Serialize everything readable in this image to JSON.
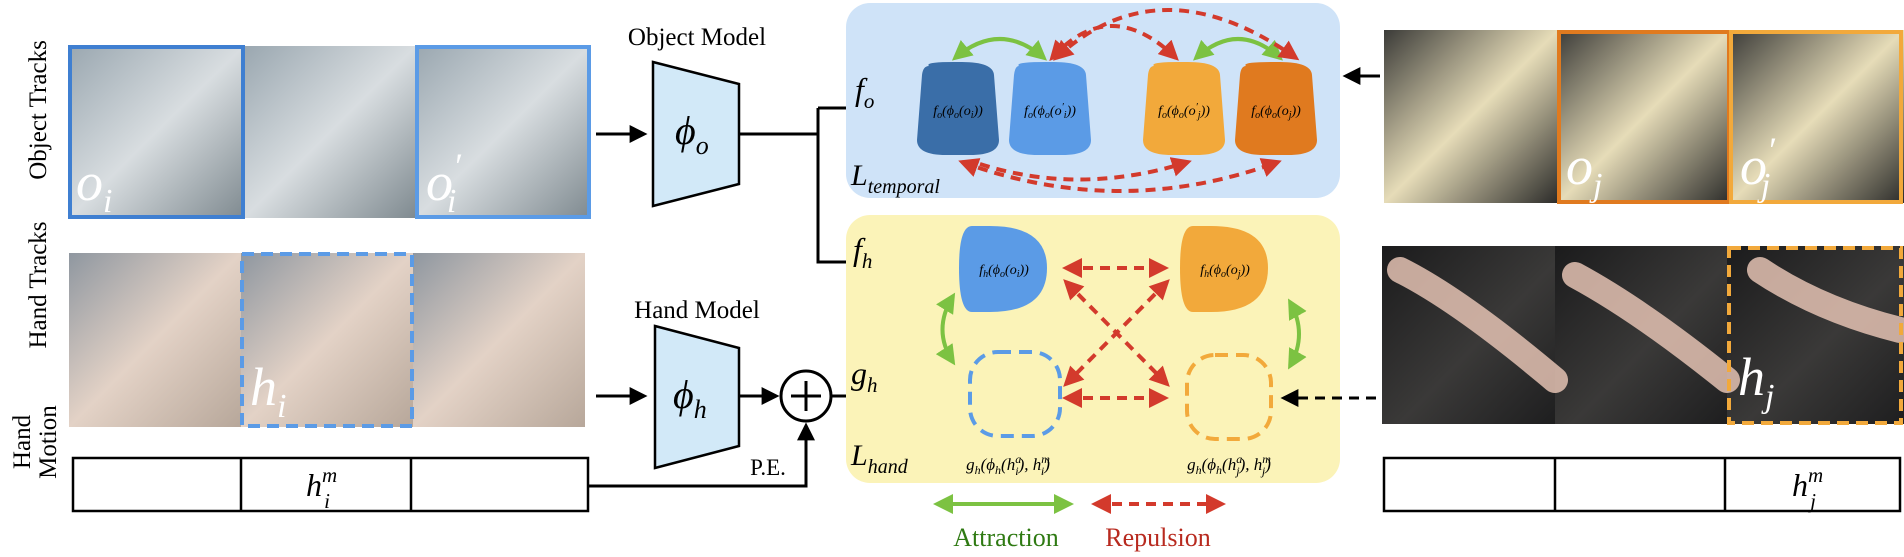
{
  "row_labels": {
    "object_tracks": "Object Tracks",
    "hand_tracks": "Hand Tracks",
    "hand_motion_line1": "Hand",
    "hand_motion_line2": "Motion"
  },
  "models": {
    "object_title": "Object Model",
    "object_symbol": "ϕ",
    "object_sub": "o",
    "hand_title": "Hand Model",
    "hand_symbol": "ϕ",
    "hand_sub": "h",
    "pe_label": "P.E."
  },
  "frame_labels": {
    "o_i": "o",
    "o_i_sub": "i",
    "o_i_prime": "o",
    "o_i_prime_sub": "i",
    "o_i_prime_mark": "′",
    "h_i": "h",
    "h_i_sub": "i",
    "o_j": "o",
    "o_j_sub": "j",
    "o_j_prime": "o",
    "o_j_prime_sub": "j",
    "o_j_prime_mark": "′",
    "h_j": "h",
    "h_j_sub": "j"
  },
  "motion": {
    "left_label": "h",
    "left_sup": "m",
    "left_sub": "i",
    "right_label": "h",
    "right_sup": "m",
    "right_sub": "j"
  },
  "temporal_panel": {
    "fo_label": "f",
    "fo_sub": "o",
    "loss_label": "L",
    "loss_sub": "temporal",
    "nodes": [
      {
        "text": "f_o(ϕ_o(o_i))",
        "f": "f",
        "fs": "o",
        "p": "ϕ",
        "ps": "o",
        "a": "o",
        "as": "i",
        "prime": "",
        "color": "#3a6ea8"
      },
      {
        "text": "f_o(ϕ_o(o′_i))",
        "f": "f",
        "fs": "o",
        "p": "ϕ",
        "ps": "o",
        "a": "o",
        "as": "i",
        "prime": "′",
        "color": "#5b9be6"
      },
      {
        "text": "f_o(ϕ_o(o′_j))",
        "f": "f",
        "fs": "o",
        "p": "ϕ",
        "ps": "o",
        "a": "o",
        "as": "j",
        "prime": "′",
        "color": "#f2a93b"
      },
      {
        "text": "f_o(ϕ_o(o_j))",
        "f": "f",
        "fs": "o",
        "p": "ϕ",
        "ps": "o",
        "a": "o",
        "as": "j",
        "prime": "",
        "color": "#e07a1f"
      }
    ]
  },
  "hand_panel": {
    "fh_label": "f",
    "fh_sub": "h",
    "gh_label": "g",
    "gh_sub": "h",
    "loss_label": "L",
    "loss_sub": "hand",
    "node_left": {
      "f": "f",
      "fs": "h",
      "p": "ϕ",
      "ps": "o",
      "a": "o",
      "as": "i",
      "color": "#5b9be6"
    },
    "node_right": {
      "f": "f",
      "fs": "h",
      "p": "ϕ",
      "ps": "o",
      "a": "o",
      "as": "j",
      "color": "#f2a93b"
    },
    "g_left": {
      "g": "g",
      "gs": "h",
      "p": "ϕ",
      "ps": "h",
      "h": "h",
      "hsup": "a",
      "hsub": "i",
      "m": "h",
      "msup": "m",
      "msub": "i"
    },
    "g_right": {
      "g": "g",
      "gs": "h",
      "p": "ϕ",
      "ps": "h",
      "h": "h",
      "hsup": "a",
      "hsub": "j",
      "m": "h",
      "msup": "m",
      "msub": "j"
    }
  },
  "legend": {
    "attraction": "Attraction",
    "repulsion": "Repulsion"
  },
  "colors": {
    "temporal_bg": "#cfe3f8",
    "hand_bg": "#fbf3b8",
    "attraction": "#7cc242",
    "repulsion": "#d33a2c",
    "blue_frame": "#3f7fd1",
    "orange_frame": "#e07a1f",
    "yellow_frame": "#f2a93b",
    "model_fill": "#d2e9f8"
  }
}
